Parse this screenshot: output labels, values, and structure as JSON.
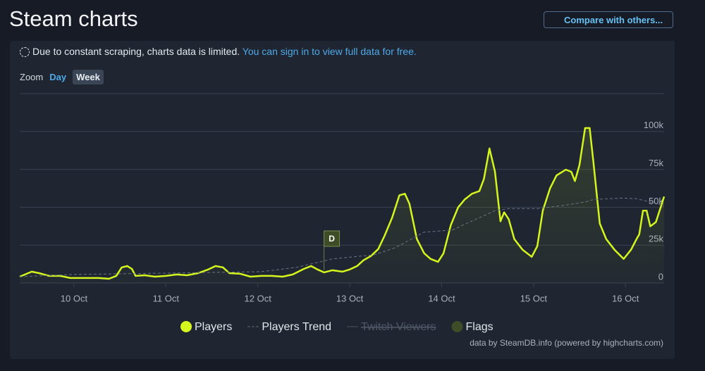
{
  "header": {
    "title": "Steam charts",
    "compare_button": "Compare with others..."
  },
  "notice": {
    "text": "Due to constant scraping, charts data is limited.",
    "link": "You can sign in to view full data for free."
  },
  "zoom": {
    "label": "Zoom",
    "options": [
      "Day",
      "Week"
    ],
    "active": "Week"
  },
  "chart_data": {
    "type": "line",
    "xlim": [
      9.41,
      16.42
    ],
    "xticks": [
      {
        "value": 10,
        "label": "10 Oct"
      },
      {
        "value": 11,
        "label": "11 Oct"
      },
      {
        "value": 12,
        "label": "12 Oct"
      },
      {
        "value": 13,
        "label": "13 Oct"
      },
      {
        "value": 14,
        "label": "14 Oct"
      },
      {
        "value": 15,
        "label": "15 Oct"
      },
      {
        "value": 16,
        "label": "16 Oct"
      }
    ],
    "ylim": [
      0,
      125000
    ],
    "yticks": [
      0,
      {
        "value": 25000,
        "label": "25k"
      },
      {
        "value": 50000,
        "label": "50k"
      },
      {
        "value": 75000,
        "label": "75k"
      },
      {
        "value": 100000,
        "label": "100k"
      }
    ],
    "grid": true,
    "series": [
      {
        "name": "Players",
        "color": "#d4f51d",
        "style": "solid",
        "visible": true,
        "x": [
          9.41,
          9.54,
          9.62,
          9.73,
          9.85,
          9.96,
          10.12,
          10.27,
          10.38,
          10.46,
          10.52,
          10.58,
          10.63,
          10.67,
          10.77,
          10.88,
          11.0,
          11.12,
          11.23,
          11.35,
          11.46,
          11.54,
          11.62,
          11.69,
          11.81,
          11.92,
          12.04,
          12.15,
          12.27,
          12.38,
          12.5,
          12.58,
          12.65,
          12.72,
          12.81,
          12.92,
          13.0,
          13.08,
          13.15,
          13.23,
          13.31,
          13.38,
          13.46,
          13.54,
          13.6,
          13.65,
          13.73,
          13.81,
          13.88,
          13.96,
          14.02,
          14.1,
          14.18,
          14.25,
          14.33,
          14.41,
          14.46,
          14.52,
          14.58,
          14.64,
          14.68,
          14.73,
          14.79,
          14.88,
          14.98,
          15.04,
          15.1,
          15.18,
          15.25,
          15.35,
          15.41,
          15.45,
          15.5,
          15.56,
          15.61,
          15.65,
          15.72,
          15.79,
          15.88,
          15.98,
          16.06,
          16.12,
          16.15,
          16.19,
          16.23,
          16.27,
          16.33,
          16.38,
          16.42
        ],
        "values": [
          4200,
          7500,
          6500,
          4700,
          4700,
          3300,
          3300,
          3300,
          2800,
          4700,
          10300,
          11200,
          9300,
          4700,
          5100,
          4200,
          4700,
          5600,
          5100,
          6500,
          8900,
          11200,
          10300,
          6500,
          6100,
          4200,
          4700,
          4700,
          4200,
          5600,
          9300,
          11200,
          8900,
          7000,
          8400,
          7500,
          8900,
          11200,
          15000,
          17800,
          22400,
          31300,
          43000,
          57900,
          58900,
          52300,
          29000,
          19600,
          15900,
          14000,
          19600,
          38300,
          50000,
          55100,
          58900,
          60700,
          68700,
          88800,
          73400,
          40700,
          46700,
          42100,
          29000,
          22000,
          17300,
          24300,
          47700,
          62600,
          71000,
          74800,
          73400,
          67300,
          78000,
          102300,
          102300,
          80400,
          39300,
          29000,
          22000,
          15900,
          22000,
          29000,
          32200,
          47700,
          47700,
          37400,
          40200,
          49500,
          57000
        ]
      },
      {
        "name": "Players Trend",
        "color": "#6b7484",
        "style": "dashed",
        "visible": true,
        "x": [
          9.41,
          10.0,
          11.0,
          12.04,
          12.42,
          12.81,
          13.27,
          13.5,
          13.81,
          14.12,
          14.27,
          14.58,
          14.73,
          15.04,
          15.35,
          15.58,
          15.65,
          15.96,
          16.12,
          16.35,
          16.42
        ],
        "values": [
          4200,
          5600,
          6500,
          7500,
          10300,
          15900,
          18700,
          23400,
          33600,
          35000,
          39300,
          47700,
          49100,
          49100,
          51400,
          53700,
          55100,
          56100,
          55600,
          52300,
          50900
        ]
      },
      {
        "name": "Twitch Viewers",
        "color": "#4a5263",
        "style": "solid",
        "visible": false,
        "x": [],
        "values": []
      }
    ],
    "flags": {
      "name": "Flags",
      "color": "#3f4d26",
      "items": [
        {
          "x": 12.72,
          "label": "D"
        }
      ]
    },
    "credits": "data by SteamDB.info (powered by highcharts.com)"
  }
}
